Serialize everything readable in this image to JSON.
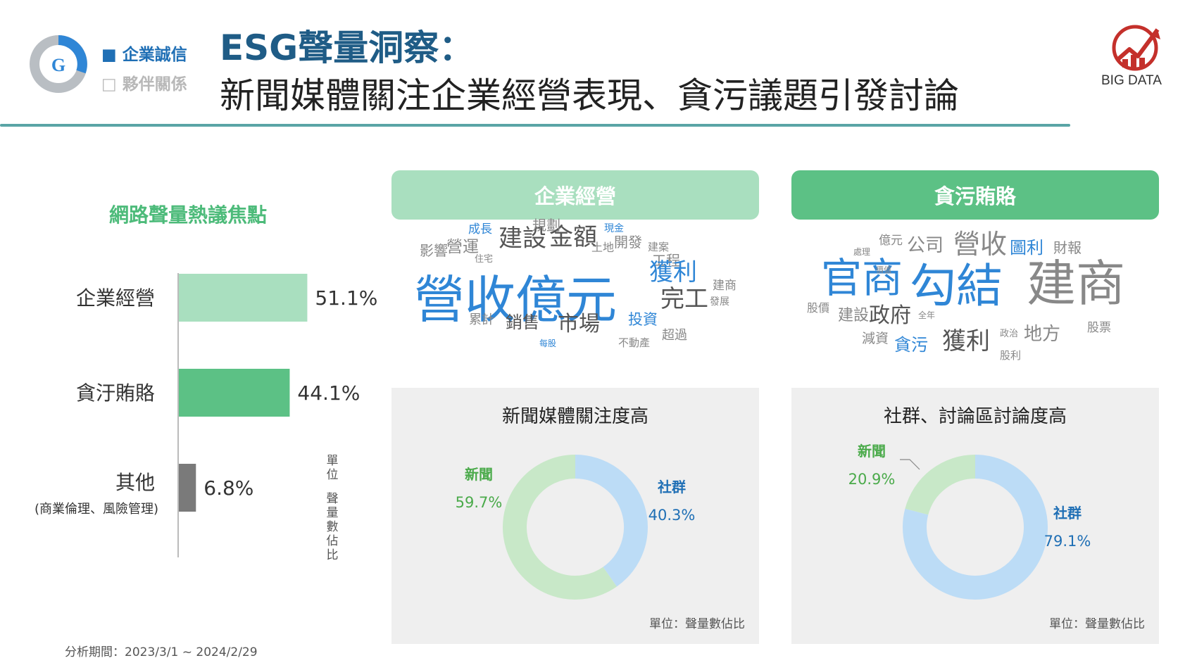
{
  "header": {
    "tags": [
      "■ 企業誠信",
      "□ 夥伴關係"
    ],
    "badge_letter": "G",
    "title_line1": "ESG聲量洞察：",
    "title_line2": "新聞媒體關注企業經營表現、貪污議題引發討論",
    "brand": "BIG DATA"
  },
  "colors": {
    "light_green": "#a9dfbf",
    "green": "#5cc185",
    "grey": "#7a7a7a",
    "light_blue": "#bcdcf6",
    "news_green": "#c8e8c8",
    "blue_text": "#1f6fb5"
  },
  "bar_section": {
    "title": "網路聲量熱議焦點",
    "unit": "單位：聲量數佔比",
    "period": "分析期間：2023/3/1 ~ 2024/2/29"
  },
  "chart_data": [
    {
      "type": "bar",
      "orientation": "horizontal",
      "categories": [
        "企業經營",
        "貪汙賄賂",
        "其他"
      ],
      "category_note": [
        "",
        "",
        "(商業倫理、風險管理)"
      ],
      "values": [
        51.1,
        44.1,
        6.8
      ],
      "value_labels": [
        "51.1%",
        "44.1%",
        "6.8%"
      ],
      "colors": [
        "#a9dfbf",
        "#5cc185",
        "#7a7a7a"
      ],
      "title": "網路聲量熱議焦點",
      "xlim": [
        0,
        100
      ]
    },
    {
      "type": "pie",
      "title": "新聞媒體關注度高",
      "slices": [
        {
          "name": "新聞",
          "value": 59.7,
          "label": "59.7%",
          "color": "#c8e8c8"
        },
        {
          "name": "社群",
          "value": 40.3,
          "label": "40.3%",
          "color": "#bcdcf6"
        }
      ]
    },
    {
      "type": "pie",
      "title": "社群、討論區討論度高",
      "slices": [
        {
          "name": "新聞",
          "value": 20.9,
          "label": "20.9%",
          "color": "#c8e8c8"
        },
        {
          "name": "社群",
          "value": 79.1,
          "label": "79.1%",
          "color": "#bcdcf6"
        }
      ]
    }
  ],
  "topics": [
    "企業經營",
    "貪污賄賂"
  ],
  "panels": [
    {
      "title": "新聞媒體關注度高",
      "unit": "單位：聲量數佔比"
    },
    {
      "title": "社群、討論區討論度高",
      "unit": "單位：聲量數佔比"
    }
  ],
  "cloud1": [
    "營收億元",
    "建設",
    "金額",
    "規劃",
    "成長",
    "現金",
    "營運",
    "影響",
    "住宅",
    "土地",
    "開發",
    "建案",
    "工程",
    "獲利",
    "完工",
    "建商",
    "發展",
    "累計",
    "銷售",
    "市場",
    "投資",
    "每股",
    "不動產",
    "超過"
  ],
  "cloud2": [
    "官商",
    "勾結",
    "建商",
    "公司",
    "營收",
    "圖利",
    "財報",
    "億元",
    "處理",
    "價值",
    "股價",
    "建設",
    "政府",
    "全年",
    "減資",
    "貪污",
    "獲利",
    "政治",
    "地方",
    "股票",
    "股利"
  ]
}
